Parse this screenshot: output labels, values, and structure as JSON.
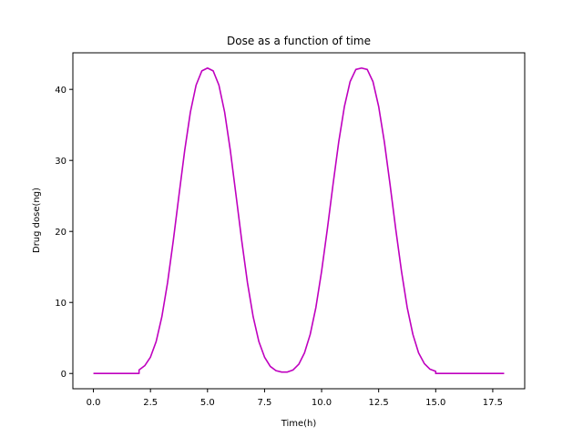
{
  "chart_data": {
    "type": "line",
    "title": "Dose as a function of time",
    "xlabel": "Time(h)",
    "ylabel": "Drug dose(ng)",
    "xlim": [
      -0.9,
      18.9
    ],
    "ylim": [
      -2.15,
      45.15
    ],
    "xticks": [
      0.0,
      2.5,
      5.0,
      7.5,
      10.0,
      12.5,
      15.0,
      17.5
    ],
    "xtick_labels": [
      "0.0",
      "2.5",
      "5.0",
      "7.5",
      "10.0",
      "12.5",
      "15.0",
      "17.5"
    ],
    "yticks": [
      0,
      10,
      20,
      30,
      40
    ],
    "ytick_labels": [
      "0",
      "10",
      "20",
      "30",
      "40"
    ],
    "grid": false,
    "series": [
      {
        "color": "#bf00bf",
        "x": [
          0,
          1,
          2,
          2,
          2.25,
          2.5,
          2.75,
          3,
          3.25,
          3.5,
          3.75,
          4,
          4.25,
          4.5,
          4.75,
          5,
          5.25,
          5.5,
          5.75,
          6,
          6.25,
          6.5,
          6.75,
          7,
          7.25,
          7.5,
          7.75,
          8,
          8.25,
          8.5,
          8.75,
          9,
          9.25,
          9.5,
          9.75,
          10,
          10.25,
          10.5,
          10.75,
          11,
          11.25,
          11.5,
          11.75,
          12,
          12.25,
          12.5,
          12.75,
          13,
          13.25,
          13.5,
          13.75,
          14,
          14.25,
          14.5,
          14.75,
          15,
          15,
          16,
          17,
          18
        ],
        "y": [
          0,
          0,
          0,
          0.5,
          1.1,
          2.3,
          4.5,
          8.0,
          12.8,
          18.7,
          25.1,
          31.4,
          36.8,
          40.6,
          42.6,
          43.0,
          42.6,
          40.6,
          36.8,
          31.4,
          25.1,
          18.7,
          12.8,
          8.0,
          4.5,
          2.3,
          1.0,
          0.4,
          0.2,
          0.2,
          0.5,
          1.3,
          2.9,
          5.5,
          9.3,
          14.4,
          20.3,
          26.6,
          32.6,
          37.6,
          41.1,
          42.8,
          43.0,
          42.8,
          41.1,
          37.6,
          32.6,
          26.6,
          20.3,
          14.4,
          9.3,
          5.5,
          2.9,
          1.4,
          0.6,
          0.3,
          0,
          0,
          0,
          0
        ]
      }
    ]
  }
}
